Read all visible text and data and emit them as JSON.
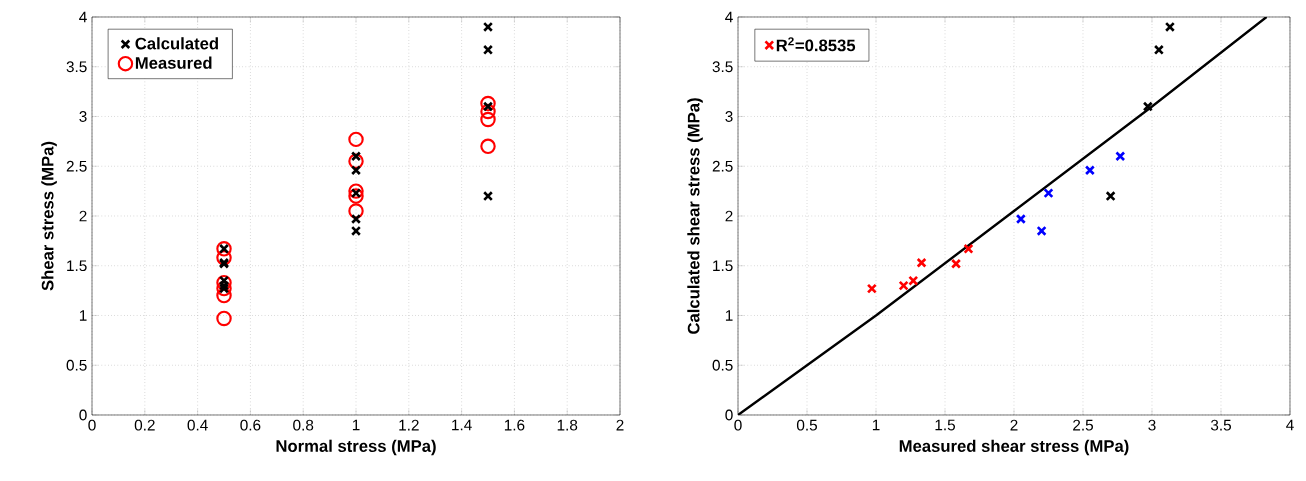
{
  "chart_data": [
    {
      "type": "scatter",
      "xlabel": "Normal stress (MPa)",
      "ylabel": "Shear stress (MPa)",
      "xlim": [
        0,
        2
      ],
      "ylim": [
        0,
        4
      ],
      "xticks": [
        0,
        0.2,
        0.4,
        0.6,
        0.8,
        1,
        1.2,
        1.4,
        1.6,
        1.8,
        2
      ],
      "yticks": [
        0,
        0.5,
        1,
        1.5,
        2,
        2.5,
        3,
        3.5,
        4
      ],
      "grid": true,
      "legend": "top left",
      "series": [
        {
          "name": "Calculated",
          "color": "#000000",
          "marker": "cross",
          "x": [
            0.5,
            0.5,
            0.5,
            0.5,
            0.5,
            0.5,
            1,
            1,
            1,
            1,
            1,
            1.5,
            1.5,
            1.5,
            1.5
          ],
          "values": [
            1.27,
            1.3,
            1.35,
            1.53,
            1.52,
            1.67,
            1.97,
            1.85,
            2.23,
            2.46,
            2.6,
            2.2,
            3.1,
            3.67,
            3.9
          ]
        },
        {
          "name": "Measured",
          "color": "#ff0000",
          "marker": "circle",
          "x": [
            0.5,
            0.5,
            0.5,
            0.5,
            0.5,
            0.5,
            1,
            1,
            1,
            1,
            1,
            1.5,
            1.5,
            1.5,
            1.5
          ],
          "values": [
            0.97,
            1.2,
            1.27,
            1.33,
            1.58,
            1.67,
            2.05,
            2.2,
            2.25,
            2.55,
            2.77,
            2.7,
            2.97,
            3.05,
            3.13
          ]
        }
      ]
    },
    {
      "type": "scatter",
      "xlabel": "Measured shear stress (MPa)",
      "ylabel": "Calculated shear stress (MPa)",
      "xlim": [
        0,
        4
      ],
      "ylim": [
        0,
        4
      ],
      "xticks": [
        0,
        0.5,
        1,
        1.5,
        2,
        2.5,
        3,
        3.5,
        4
      ],
      "yticks": [
        0,
        0.5,
        1,
        1.5,
        2,
        2.5,
        3,
        3.5,
        4
      ],
      "grid": true,
      "legend": "top left",
      "series": [
        {
          "name": "R$^{2}$=0.8535",
          "color": "#ff0000",
          "marker": "cross",
          "x": [
            0.97,
            1.2,
            1.27,
            1.33,
            1.58,
            1.67
          ],
          "values": [
            1.27,
            1.3,
            1.35,
            1.53,
            1.52,
            1.67
          ]
        },
        {
          "color": "#0000ff",
          "marker": "cross",
          "x": [
            2.05,
            2.2,
            2.25,
            2.55,
            2.77
          ],
          "values": [
            1.97,
            1.85,
            2.23,
            2.46,
            2.6
          ]
        },
        {
          "color": "#000000",
          "marker": "cross",
          "x": [
            2.7,
            2.97,
            3.05,
            3.13
          ],
          "values": [
            2.2,
            3.1,
            3.67,
            3.9
          ]
        },
        {
          "type": "line",
          "color": "#000000",
          "marker": "none",
          "line_style": "solid",
          "x": [
            0,
            1,
            2,
            3,
            3.83
          ],
          "values": [
            0,
            1,
            2.05,
            3.1,
            4
          ]
        }
      ]
    }
  ]
}
